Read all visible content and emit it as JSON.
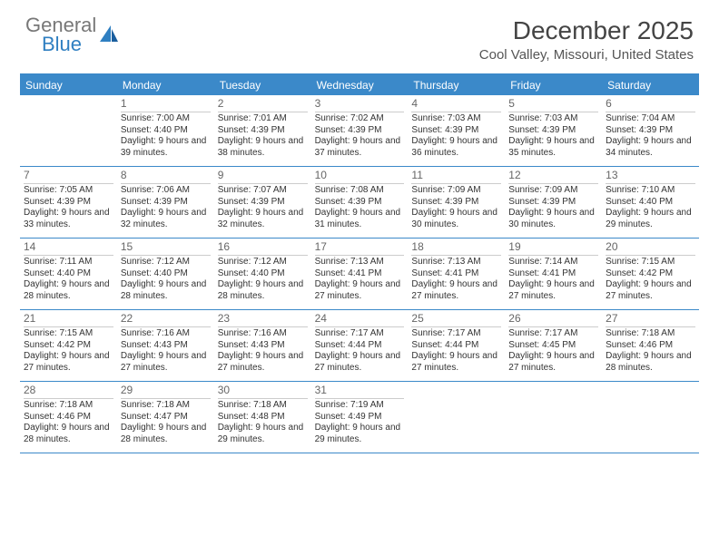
{
  "logo": {
    "line1": "General",
    "line2": "Blue"
  },
  "title": "December 2025",
  "location": "Cool Valley, Missouri, United States",
  "colors": {
    "header_bg": "#3b89c9",
    "header_text": "#ffffff",
    "border": "#3b89c9",
    "daynum_color": "#666666",
    "body_text": "#333333",
    "logo_gray": "#777777",
    "logo_blue": "#2f7fc1"
  },
  "day_names": [
    "Sunday",
    "Monday",
    "Tuesday",
    "Wednesday",
    "Thursday",
    "Friday",
    "Saturday"
  ],
  "weeks": [
    [
      {
        "num": "",
        "sunrise": "",
        "sunset": "",
        "daylight": ""
      },
      {
        "num": "1",
        "sunrise": "Sunrise: 7:00 AM",
        "sunset": "Sunset: 4:40 PM",
        "daylight": "Daylight: 9 hours and 39 minutes."
      },
      {
        "num": "2",
        "sunrise": "Sunrise: 7:01 AM",
        "sunset": "Sunset: 4:39 PM",
        "daylight": "Daylight: 9 hours and 38 minutes."
      },
      {
        "num": "3",
        "sunrise": "Sunrise: 7:02 AM",
        "sunset": "Sunset: 4:39 PM",
        "daylight": "Daylight: 9 hours and 37 minutes."
      },
      {
        "num": "4",
        "sunrise": "Sunrise: 7:03 AM",
        "sunset": "Sunset: 4:39 PM",
        "daylight": "Daylight: 9 hours and 36 minutes."
      },
      {
        "num": "5",
        "sunrise": "Sunrise: 7:03 AM",
        "sunset": "Sunset: 4:39 PM",
        "daylight": "Daylight: 9 hours and 35 minutes."
      },
      {
        "num": "6",
        "sunrise": "Sunrise: 7:04 AM",
        "sunset": "Sunset: 4:39 PM",
        "daylight": "Daylight: 9 hours and 34 minutes."
      }
    ],
    [
      {
        "num": "7",
        "sunrise": "Sunrise: 7:05 AM",
        "sunset": "Sunset: 4:39 PM",
        "daylight": "Daylight: 9 hours and 33 minutes."
      },
      {
        "num": "8",
        "sunrise": "Sunrise: 7:06 AM",
        "sunset": "Sunset: 4:39 PM",
        "daylight": "Daylight: 9 hours and 32 minutes."
      },
      {
        "num": "9",
        "sunrise": "Sunrise: 7:07 AM",
        "sunset": "Sunset: 4:39 PM",
        "daylight": "Daylight: 9 hours and 32 minutes."
      },
      {
        "num": "10",
        "sunrise": "Sunrise: 7:08 AM",
        "sunset": "Sunset: 4:39 PM",
        "daylight": "Daylight: 9 hours and 31 minutes."
      },
      {
        "num": "11",
        "sunrise": "Sunrise: 7:09 AM",
        "sunset": "Sunset: 4:39 PM",
        "daylight": "Daylight: 9 hours and 30 minutes."
      },
      {
        "num": "12",
        "sunrise": "Sunrise: 7:09 AM",
        "sunset": "Sunset: 4:39 PM",
        "daylight": "Daylight: 9 hours and 30 minutes."
      },
      {
        "num": "13",
        "sunrise": "Sunrise: 7:10 AM",
        "sunset": "Sunset: 4:40 PM",
        "daylight": "Daylight: 9 hours and 29 minutes."
      }
    ],
    [
      {
        "num": "14",
        "sunrise": "Sunrise: 7:11 AM",
        "sunset": "Sunset: 4:40 PM",
        "daylight": "Daylight: 9 hours and 28 minutes."
      },
      {
        "num": "15",
        "sunrise": "Sunrise: 7:12 AM",
        "sunset": "Sunset: 4:40 PM",
        "daylight": "Daylight: 9 hours and 28 minutes."
      },
      {
        "num": "16",
        "sunrise": "Sunrise: 7:12 AM",
        "sunset": "Sunset: 4:40 PM",
        "daylight": "Daylight: 9 hours and 28 minutes."
      },
      {
        "num": "17",
        "sunrise": "Sunrise: 7:13 AM",
        "sunset": "Sunset: 4:41 PM",
        "daylight": "Daylight: 9 hours and 27 minutes."
      },
      {
        "num": "18",
        "sunrise": "Sunrise: 7:13 AM",
        "sunset": "Sunset: 4:41 PM",
        "daylight": "Daylight: 9 hours and 27 minutes."
      },
      {
        "num": "19",
        "sunrise": "Sunrise: 7:14 AM",
        "sunset": "Sunset: 4:41 PM",
        "daylight": "Daylight: 9 hours and 27 minutes."
      },
      {
        "num": "20",
        "sunrise": "Sunrise: 7:15 AM",
        "sunset": "Sunset: 4:42 PM",
        "daylight": "Daylight: 9 hours and 27 minutes."
      }
    ],
    [
      {
        "num": "21",
        "sunrise": "Sunrise: 7:15 AM",
        "sunset": "Sunset: 4:42 PM",
        "daylight": "Daylight: 9 hours and 27 minutes."
      },
      {
        "num": "22",
        "sunrise": "Sunrise: 7:16 AM",
        "sunset": "Sunset: 4:43 PM",
        "daylight": "Daylight: 9 hours and 27 minutes."
      },
      {
        "num": "23",
        "sunrise": "Sunrise: 7:16 AM",
        "sunset": "Sunset: 4:43 PM",
        "daylight": "Daylight: 9 hours and 27 minutes."
      },
      {
        "num": "24",
        "sunrise": "Sunrise: 7:17 AM",
        "sunset": "Sunset: 4:44 PM",
        "daylight": "Daylight: 9 hours and 27 minutes."
      },
      {
        "num": "25",
        "sunrise": "Sunrise: 7:17 AM",
        "sunset": "Sunset: 4:44 PM",
        "daylight": "Daylight: 9 hours and 27 minutes."
      },
      {
        "num": "26",
        "sunrise": "Sunrise: 7:17 AM",
        "sunset": "Sunset: 4:45 PM",
        "daylight": "Daylight: 9 hours and 27 minutes."
      },
      {
        "num": "27",
        "sunrise": "Sunrise: 7:18 AM",
        "sunset": "Sunset: 4:46 PM",
        "daylight": "Daylight: 9 hours and 28 minutes."
      }
    ],
    [
      {
        "num": "28",
        "sunrise": "Sunrise: 7:18 AM",
        "sunset": "Sunset: 4:46 PM",
        "daylight": "Daylight: 9 hours and 28 minutes."
      },
      {
        "num": "29",
        "sunrise": "Sunrise: 7:18 AM",
        "sunset": "Sunset: 4:47 PM",
        "daylight": "Daylight: 9 hours and 28 minutes."
      },
      {
        "num": "30",
        "sunrise": "Sunrise: 7:18 AM",
        "sunset": "Sunset: 4:48 PM",
        "daylight": "Daylight: 9 hours and 29 minutes."
      },
      {
        "num": "31",
        "sunrise": "Sunrise: 7:19 AM",
        "sunset": "Sunset: 4:49 PM",
        "daylight": "Daylight: 9 hours and 29 minutes."
      },
      {
        "num": "",
        "sunrise": "",
        "sunset": "",
        "daylight": ""
      },
      {
        "num": "",
        "sunrise": "",
        "sunset": "",
        "daylight": ""
      },
      {
        "num": "",
        "sunrise": "",
        "sunset": "",
        "daylight": ""
      }
    ]
  ]
}
